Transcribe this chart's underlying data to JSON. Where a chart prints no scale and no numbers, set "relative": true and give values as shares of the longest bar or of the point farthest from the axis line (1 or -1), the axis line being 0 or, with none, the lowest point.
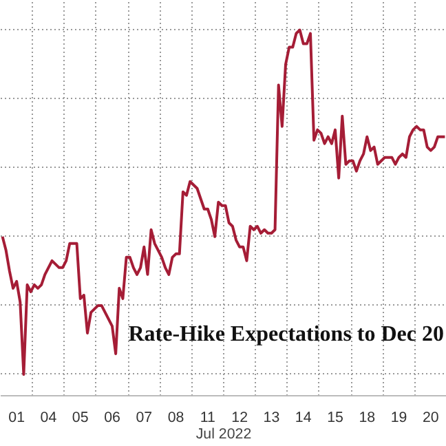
{
  "chart_data": {
    "type": "line",
    "relative": true,
    "xlabel": "Jul 2022",
    "annotations": [
      "Rate-Hike Expectations to Dec 20"
    ],
    "grid": true,
    "marker": "none",
    "line_style": "solid",
    "categories": [
      null,
      null,
      null,
      null,
      "01",
      null,
      null,
      null,
      null,
      null,
      null,
      null,
      null,
      "04",
      null,
      null,
      null,
      null,
      null,
      null,
      null,
      null,
      "05",
      null,
      null,
      null,
      null,
      null,
      null,
      null,
      null,
      "06",
      null,
      null,
      null,
      null,
      null,
      null,
      null,
      null,
      "07",
      null,
      null,
      null,
      null,
      null,
      null,
      null,
      null,
      "08",
      null,
      null,
      null,
      null,
      null,
      null,
      null,
      null,
      "11",
      null,
      null,
      null,
      null,
      null,
      null,
      null,
      null,
      "12",
      null,
      null,
      null,
      null,
      null,
      null,
      null,
      null,
      "13",
      null,
      null,
      null,
      null,
      null,
      null,
      null,
      null,
      "14",
      null,
      null,
      null,
      null,
      null,
      null,
      null,
      null,
      "15",
      null,
      null,
      null,
      null,
      null,
      null,
      null,
      null,
      "18",
      null,
      null,
      null,
      null,
      null,
      null,
      null,
      null,
      "19",
      null,
      null,
      null,
      null,
      null,
      null,
      null,
      null,
      "20",
      null,
      null,
      null,
      null
    ],
    "series": [
      {
        "color": "#a51d36",
        "values": [
          0.4,
          0.36,
          0.3,
          0.25,
          0.27,
          0.21,
          0.0,
          0.26,
          0.24,
          0.26,
          0.25,
          0.26,
          0.29,
          0.31,
          0.33,
          0.32,
          0.31,
          0.31,
          0.33,
          0.38,
          0.38,
          0.38,
          0.22,
          0.23,
          0.12,
          0.18,
          0.19,
          0.2,
          0.2,
          0.18,
          0.16,
          0.14,
          0.06,
          0.25,
          0.22,
          0.34,
          0.34,
          0.31,
          0.29,
          0.31,
          0.37,
          0.29,
          0.42,
          0.38,
          0.36,
          0.34,
          0.31,
          0.29,
          0.34,
          0.35,
          0.35,
          0.53,
          0.52,
          0.56,
          0.55,
          0.54,
          0.51,
          0.48,
          0.48,
          0.45,
          0.4,
          0.5,
          0.49,
          0.49,
          0.44,
          0.43,
          0.39,
          0.37,
          0.37,
          0.33,
          0.43,
          0.42,
          0.43,
          0.41,
          0.42,
          0.41,
          0.41,
          0.42,
          0.84,
          0.72,
          0.9,
          0.95,
          0.95,
          0.99,
          1.0,
          0.96,
          0.96,
          0.99,
          0.68,
          0.71,
          0.7,
          0.67,
          0.69,
          0.67,
          0.71,
          0.57,
          0.75,
          0.61,
          0.62,
          0.62,
          0.59,
          0.62,
          0.64,
          0.69,
          0.65,
          0.66,
          0.61,
          0.62,
          0.63,
          0.63,
          0.63,
          0.61,
          0.63,
          0.64,
          0.63,
          0.69,
          0.71,
          0.72,
          0.71,
          0.71,
          0.66,
          0.65,
          0.66,
          0.69,
          0.69,
          0.69
        ]
      }
    ]
  }
}
